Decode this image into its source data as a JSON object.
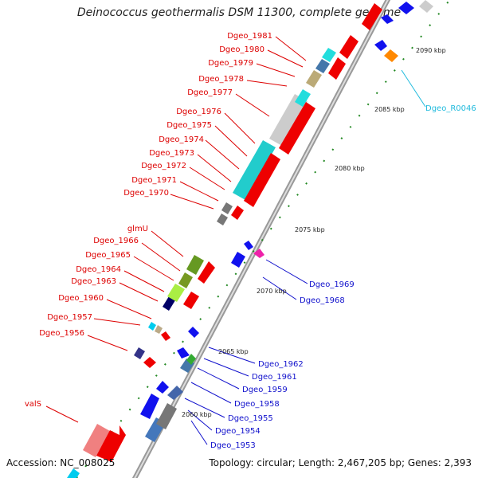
{
  "title": "Deinococcus geothermalis DSM 11300, complete genome",
  "footer": {
    "accession": "Accession: NC_008025",
    "summary": "Topology: circular; Length: 2,467,205 bp; Genes: 2,393"
  },
  "colors": {
    "forward_label": "#dd0000",
    "reverse_label": "#1010cc",
    "rna_label": "#22bbdd",
    "backbone": "#999999",
    "tick": "#228822"
  },
  "ticks": [
    "2060 kbp",
    "2065 kbp",
    "2070 kbp",
    "2075 kbp",
    "2080 kbp",
    "2085 kbp",
    "2090 kbp"
  ],
  "forward_genes": [
    "valS",
    "Dgeo_1956",
    "Dgeo_1957",
    "Dgeo_1960",
    "Dgeo_1963",
    "Dgeo_1964",
    "Dgeo_1965",
    "Dgeo_1966",
    "glmU",
    "Dgeo_1970",
    "Dgeo_1971",
    "Dgeo_1972",
    "Dgeo_1973",
    "Dgeo_1974",
    "Dgeo_1975",
    "Dgeo_1976",
    "Dgeo_1977",
    "Dgeo_1978",
    "Dgeo_1979",
    "Dgeo_1980",
    "Dgeo_1981"
  ],
  "reverse_genes": [
    "Dgeo_1953",
    "Dgeo_1954",
    "Dgeo_1955",
    "Dgeo_1958",
    "Dgeo_1959",
    "Dgeo_1961",
    "Dgeo_1962",
    "Dgeo_1968",
    "Dgeo_1969"
  ],
  "rna_genes": [
    "Dgeo_R0046"
  ]
}
